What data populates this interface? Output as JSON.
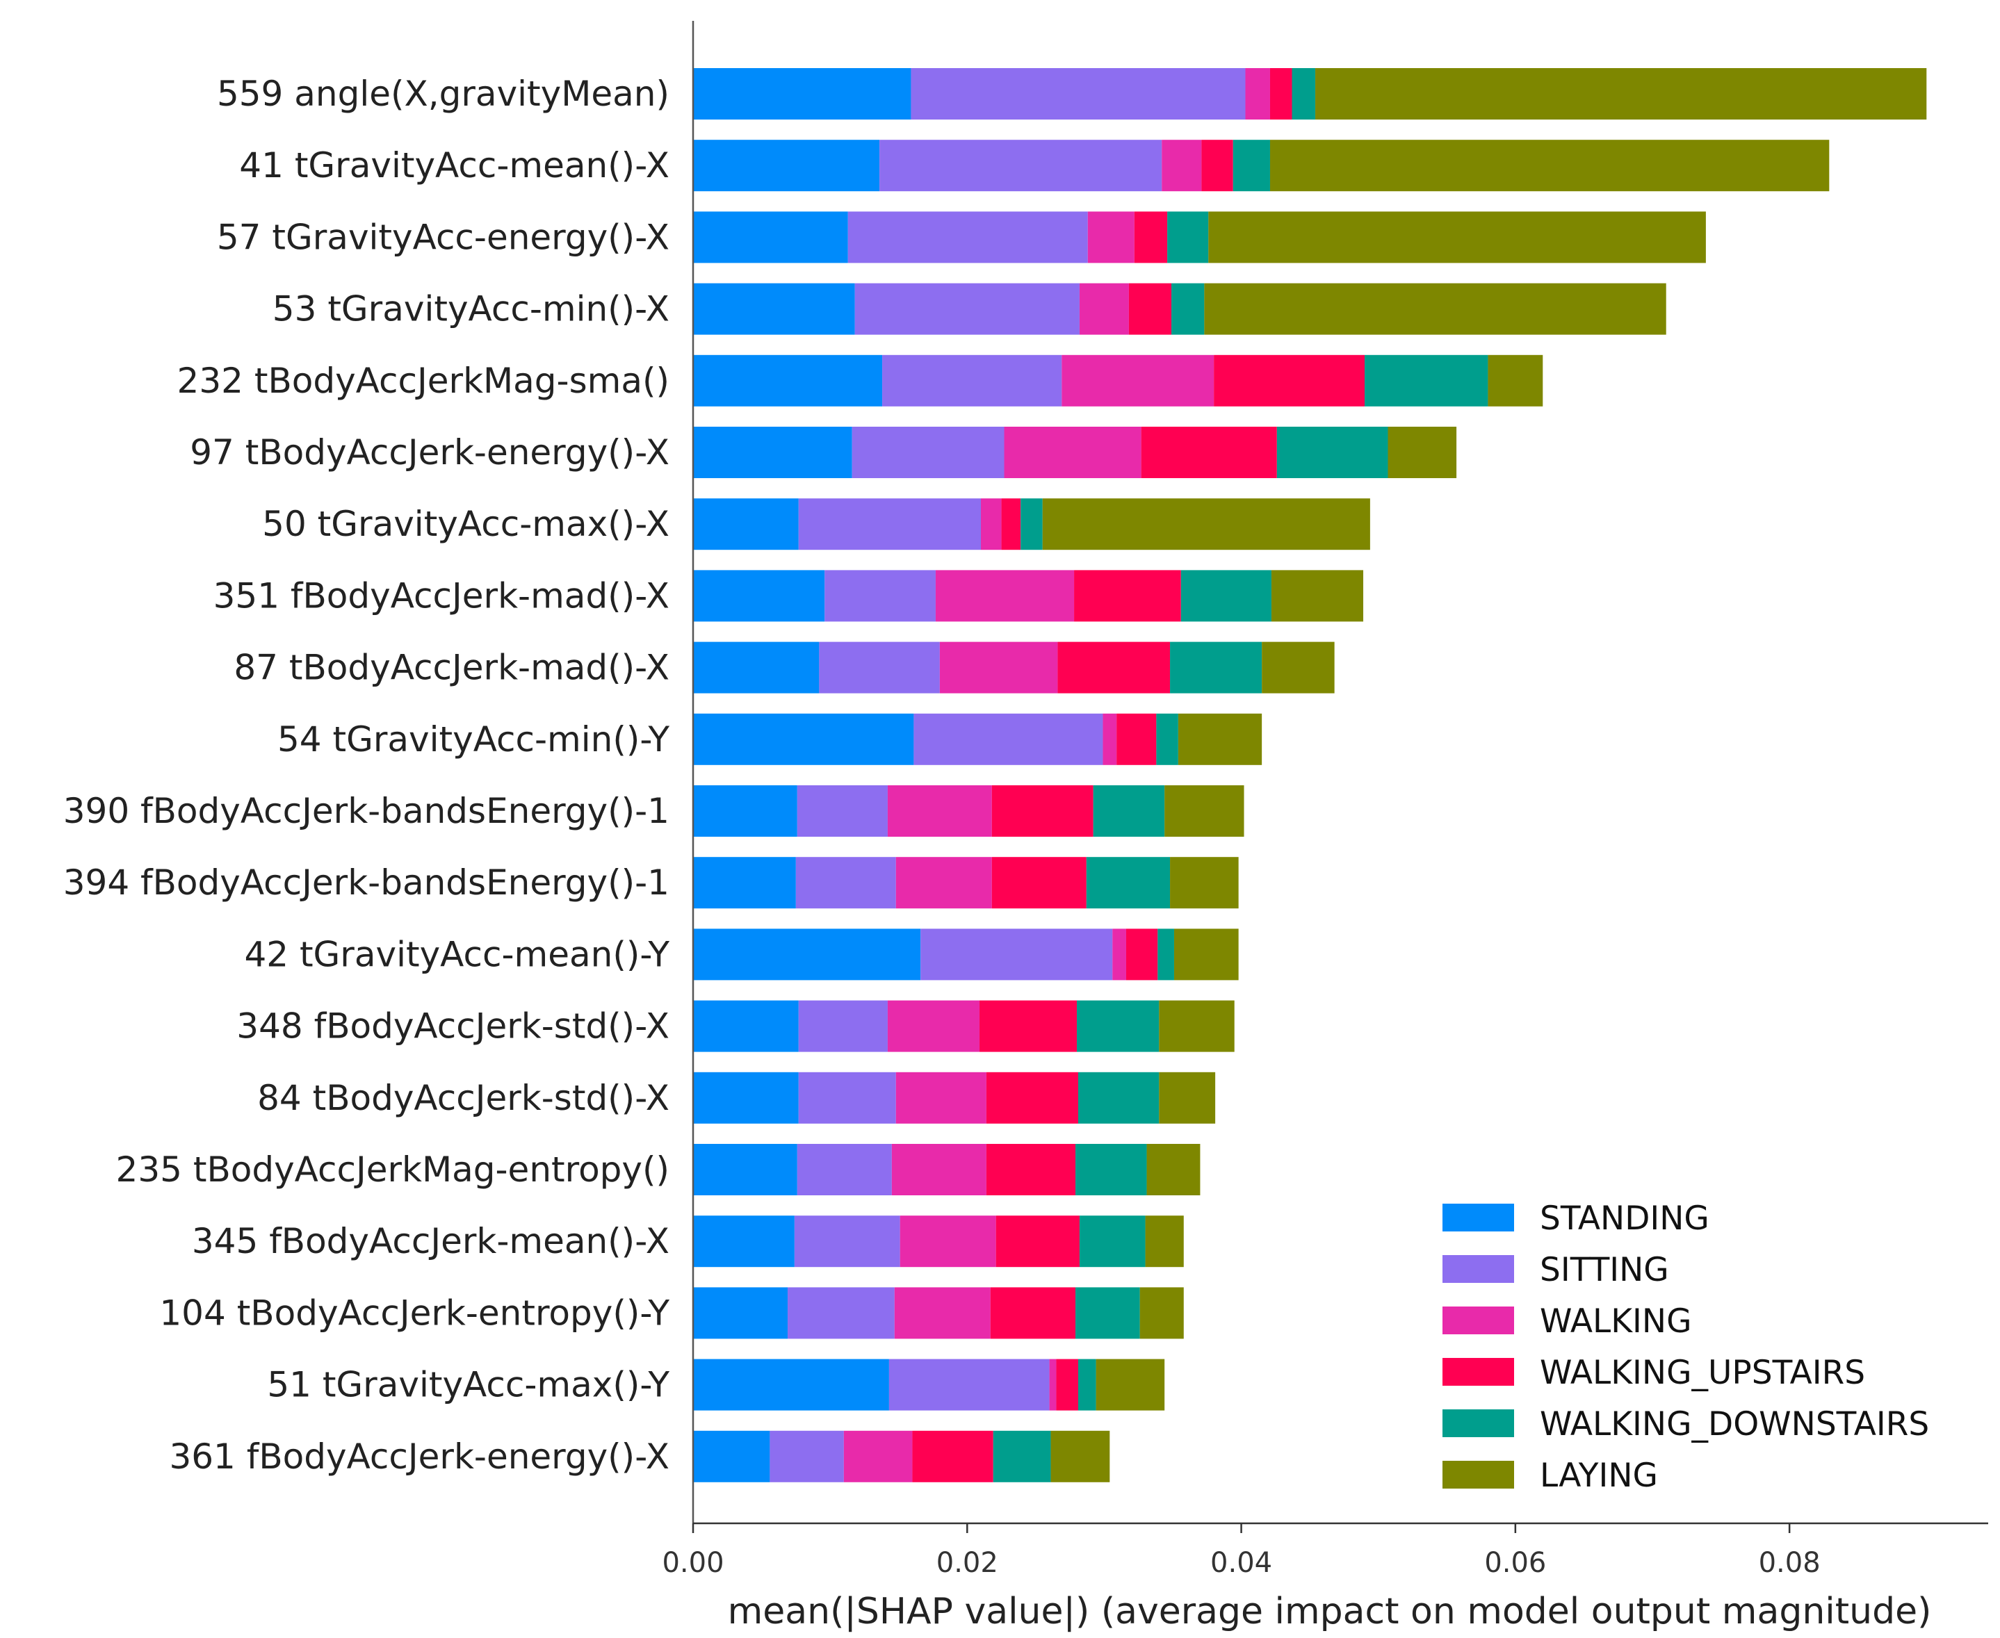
{
  "chart_data": {
    "type": "bar",
    "orientation": "horizontal",
    "stacked": true,
    "xlabel": "mean(|SHAP value|) (average impact on model output magnitude)",
    "ylabel": "",
    "xlim": [
      0,
      0.0945
    ],
    "xticks": [
      0.0,
      0.02,
      0.04,
      0.06,
      0.08
    ],
    "xtick_labels": [
      "0.00",
      "0.02",
      "0.04",
      "0.06",
      "0.08"
    ],
    "grid": false,
    "legend_position": "lower-right",
    "categories": [
      "559 angle(X,gravityMean)",
      "41 tGravityAcc-mean()-X",
      "57 tGravityAcc-energy()-X",
      "53 tGravityAcc-min()-X",
      "232 tBodyAccJerkMag-sma()",
      "97 tBodyAccJerk-energy()-X",
      "50 tGravityAcc-max()-X",
      "351 fBodyAccJerk-mad()-X",
      "87 tBodyAccJerk-mad()-X",
      "54 tGravityAcc-min()-Y",
      "390 fBodyAccJerk-bandsEnergy()-1",
      "394 fBodyAccJerk-bandsEnergy()-1",
      "42 tGravityAcc-mean()-Y",
      "348 fBodyAccJerk-std()-X",
      "84 tBodyAccJerk-std()-X",
      "235 tBodyAccJerkMag-entropy()",
      "345 fBodyAccJerk-mean()-X",
      "104 tBodyAccJerk-entropy()-Y",
      "51 tGravityAcc-max()-Y",
      "361 fBodyAccJerk-energy()-X"
    ],
    "series": [
      {
        "name": "STANDING",
        "color": "#008bfb",
        "values": [
          0.0159,
          0.0136,
          0.0113,
          0.0118,
          0.0138,
          0.0116,
          0.0077,
          0.0096,
          0.0092,
          0.0161,
          0.0076,
          0.0075,
          0.0166,
          0.0077,
          0.0077,
          0.0076,
          0.0074,
          0.0069,
          0.0143,
          0.0056
        ]
      },
      {
        "name": "SITTING",
        "color": "#8d6ef0",
        "values": [
          0.0244,
          0.0206,
          0.0175,
          0.0164,
          0.0131,
          0.0111,
          0.0133,
          0.0081,
          0.0088,
          0.0138,
          0.0066,
          0.0073,
          0.014,
          0.0065,
          0.0071,
          0.0069,
          0.0077,
          0.0078,
          0.0117,
          0.0054
        ]
      },
      {
        "name": "WALKING",
        "color": "#e82aaa",
        "values": [
          0.0018,
          0.0029,
          0.0034,
          0.0036,
          0.0111,
          0.01,
          0.0015,
          0.0101,
          0.0086,
          0.001,
          0.0076,
          0.007,
          0.001,
          0.0067,
          0.0066,
          0.0069,
          0.007,
          0.007,
          0.0005,
          0.005
        ]
      },
      {
        "name": "WALKING_UPSTAIRS",
        "color": "#ff0052",
        "values": [
          0.0016,
          0.0023,
          0.0024,
          0.0031,
          0.011,
          0.0099,
          0.0014,
          0.0078,
          0.0082,
          0.0029,
          0.0074,
          0.0069,
          0.0023,
          0.0071,
          0.0067,
          0.0065,
          0.0061,
          0.0062,
          0.0016,
          0.0059
        ]
      },
      {
        "name": "WALKING_DOWNSTAIRS",
        "color": "#009e8d",
        "values": [
          0.0017,
          0.0027,
          0.003,
          0.0024,
          0.009,
          0.0081,
          0.0016,
          0.0066,
          0.0067,
          0.0016,
          0.0052,
          0.0061,
          0.0012,
          0.006,
          0.0059,
          0.0052,
          0.0048,
          0.0047,
          0.0013,
          0.0042
        ]
      },
      {
        "name": "LAYING",
        "color": "#7e8700",
        "values": [
          0.0446,
          0.0408,
          0.0363,
          0.0337,
          0.004,
          0.005,
          0.0239,
          0.0067,
          0.0053,
          0.0061,
          0.0058,
          0.005,
          0.0047,
          0.0055,
          0.0041,
          0.0039,
          0.0028,
          0.0032,
          0.005,
          0.0043
        ]
      }
    ]
  }
}
